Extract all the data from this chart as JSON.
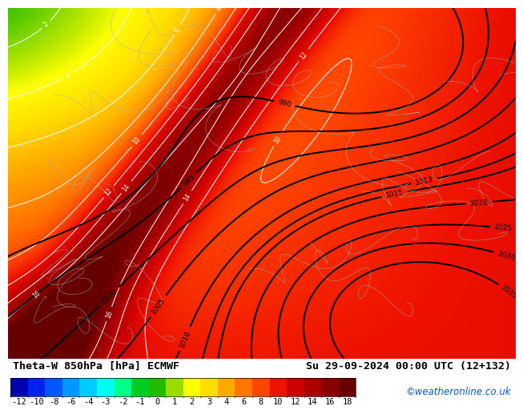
{
  "title_left": "Theta-W 850hPa [hPa] ECMWF",
  "title_right": "Su 29-09-2024 00:00 UTC (12+132)",
  "credit": "©weatheronline.co.uk",
  "colorbar_label_values": [
    -12,
    -10,
    -8,
    -6,
    -4,
    -3,
    -2,
    -1,
    0,
    1,
    2,
    3,
    4,
    6,
    8,
    10,
    12,
    14,
    16,
    18
  ],
  "colorbar_colors": [
    "#0000b0",
    "#0022ee",
    "#0055ff",
    "#0099ff",
    "#00ccff",
    "#00ffee",
    "#00ff88",
    "#00cc22",
    "#22bb00",
    "#99dd00",
    "#ffff00",
    "#ffdd00",
    "#ffaa00",
    "#ff7700",
    "#ff4400",
    "#ee1100",
    "#cc0000",
    "#aa0000",
    "#880000",
    "#660000"
  ],
  "bg_color": "#ffffff",
  "title_fontsize": 9.5,
  "credit_fontsize": 8.5,
  "tick_fontsize": 7.5
}
